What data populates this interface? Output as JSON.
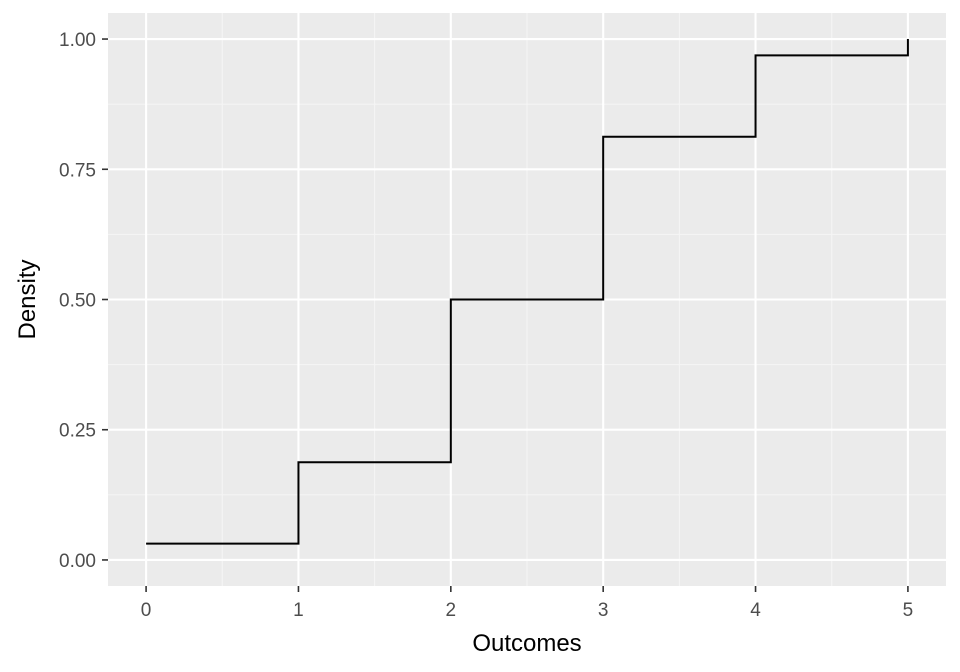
{
  "chart_data": {
    "type": "line",
    "step": "post",
    "title": "",
    "xlabel": "Outcomes",
    "ylabel": "Density",
    "xlim": [
      -0.25,
      5.25
    ],
    "ylim": [
      -0.05,
      1.05
    ],
    "x_ticks": [
      {
        "value": 0,
        "label": "0"
      },
      {
        "value": 1,
        "label": "1"
      },
      {
        "value": 2,
        "label": "2"
      },
      {
        "value": 3,
        "label": "3"
      },
      {
        "value": 4,
        "label": "4"
      },
      {
        "value": 5,
        "label": "5"
      }
    ],
    "y_ticks": [
      {
        "value": 0,
        "label": "0.00"
      },
      {
        "value": 0.25,
        "label": "0.25"
      },
      {
        "value": 0.5,
        "label": "0.50"
      },
      {
        "value": 0.75,
        "label": "0.75"
      },
      {
        "value": 1,
        "label": "1.00"
      }
    ],
    "x_minor_ticks": [
      0.5,
      1.5,
      2.5,
      3.5,
      4.5
    ],
    "y_minor_ticks": [
      0.125,
      0.375,
      0.625,
      0.875
    ],
    "grid": true,
    "legend": "none",
    "series": [
      {
        "x": [
          0,
          1,
          2,
          3,
          4,
          5
        ],
        "y": [
          0.03125,
          0.1875,
          0.5,
          0.8125,
          0.96875,
          1.0
        ],
        "color": "#000000"
      }
    ],
    "colors": {
      "panel": "#ebebeb",
      "grid_major": "#ffffff",
      "grid_minor": "#f5f5f5",
      "tick_mark": "#333333",
      "tick_text": "#4d4d4d",
      "axis_title": "#000000"
    }
  }
}
